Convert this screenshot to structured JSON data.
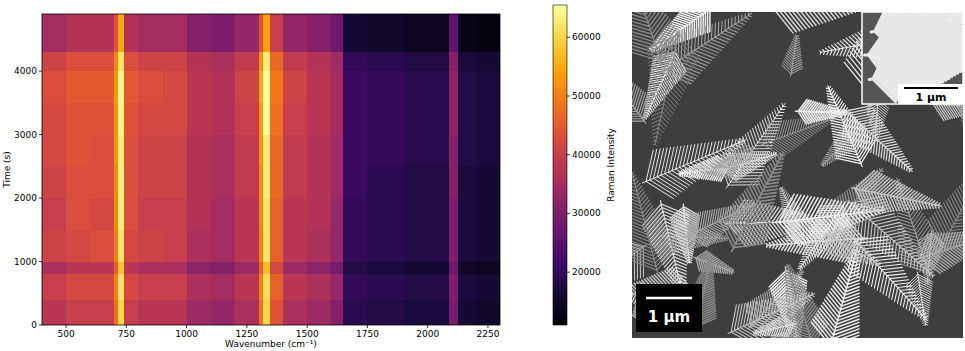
{
  "chart_data": {
    "type": "heatmap",
    "xlabel": "Wavenumber (cm⁻¹)",
    "ylabel": "Time (s)",
    "colorbar_label": "Raman Intensity",
    "xlim": [
      400,
      2300
    ],
    "ylim": [
      0,
      4900
    ],
    "xticks": [
      500,
      750,
      1000,
      1250,
      1500,
      1750,
      2000,
      2250
    ],
    "yticks": [
      0,
      1000,
      2000,
      3000,
      4000
    ],
    "color_range": [
      11000,
      65500
    ],
    "color_ticks": [
      20000,
      30000,
      40000,
      50000,
      60000
    ],
    "x_edges": [
      400,
      500,
      600,
      700,
      715,
      740,
      800,
      900,
      1000,
      1100,
      1200,
      1300,
      1315,
      1345,
      1400,
      1500,
      1600,
      1650,
      1750,
      1900,
      2090,
      2125,
      2200,
      2300
    ],
    "y_edges": [
      0,
      400,
      800,
      1000,
      1500,
      2000,
      2500,
      3000,
      3500,
      4000,
      4300,
      4900
    ],
    "cells": [
      [
        38000,
        40000,
        40000,
        48000,
        60000,
        40000,
        38000,
        38000,
        34000,
        33000,
        36000,
        48000,
        60000,
        44000,
        36000,
        34000,
        31000,
        19000,
        18000,
        17000,
        29000,
        16000,
        15000
      ],
      [
        40000,
        42000,
        42000,
        50000,
        62000,
        42000,
        40000,
        40000,
        36000,
        35000,
        38000,
        50000,
        61000,
        46000,
        38000,
        36000,
        33000,
        20000,
        19000,
        18000,
        30000,
        17000,
        16000
      ],
      [
        36000,
        38000,
        38000,
        46000,
        58000,
        38000,
        36000,
        36000,
        32000,
        31000,
        34000,
        46000,
        57000,
        42000,
        34000,
        32000,
        29000,
        18000,
        17000,
        16000,
        28000,
        15000,
        14000
      ],
      [
        41000,
        42000,
        43000,
        50000,
        62000,
        42000,
        41000,
        40000,
        36000,
        35000,
        38000,
        50000,
        62000,
        46000,
        38000,
        36000,
        33000,
        20000,
        19000,
        18000,
        30000,
        17000,
        16000
      ],
      [
        40000,
        43000,
        42000,
        51000,
        63000,
        43000,
        40000,
        40000,
        37000,
        35000,
        38000,
        51000,
        62000,
        46000,
        38000,
        37000,
        33000,
        20000,
        19000,
        18000,
        30000,
        17000,
        16000
      ],
      [
        41000,
        43000,
        43000,
        51000,
        63000,
        43000,
        41000,
        41000,
        37000,
        36000,
        39000,
        51000,
        63000,
        47000,
        39000,
        37000,
        34000,
        21000,
        19000,
        18000,
        31000,
        17000,
        16000
      ],
      [
        42000,
        44000,
        43000,
        52000,
        63000,
        43000,
        41000,
        41000,
        37000,
        36000,
        39000,
        52000,
        63000,
        47000,
        39000,
        37000,
        34000,
        21000,
        20000,
        19000,
        31000,
        18000,
        17000
      ],
      [
        42000,
        44000,
        44000,
        52000,
        64000,
        44000,
        42000,
        42000,
        38000,
        37000,
        40000,
        53000,
        65000,
        48000,
        40000,
        38000,
        35000,
        21000,
        20000,
        19000,
        32000,
        18000,
        17000
      ],
      [
        43000,
        45000,
        45000,
        53000,
        64000,
        45000,
        43000,
        42000,
        38000,
        37000,
        41000,
        55000,
        66000,
        49000,
        41000,
        38000,
        35000,
        21000,
        20000,
        19000,
        32000,
        18000,
        17000
      ],
      [
        41000,
        43000,
        43000,
        51000,
        62000,
        43000,
        41000,
        41000,
        37000,
        36000,
        39000,
        52000,
        63000,
        47000,
        39000,
        37000,
        34000,
        20000,
        19000,
        18000,
        31000,
        17000,
        16000
      ],
      [
        35000,
        37000,
        37000,
        44000,
        55000,
        37000,
        35000,
        35000,
        31000,
        30000,
        33000,
        44000,
        54000,
        40000,
        33000,
        31000,
        28000,
        16000,
        15000,
        14000,
        26000,
        13000,
        12000
      ]
    ]
  },
  "image": {
    "scale_bar": "1 µm",
    "inset_scale_bar": "1 µm"
  }
}
